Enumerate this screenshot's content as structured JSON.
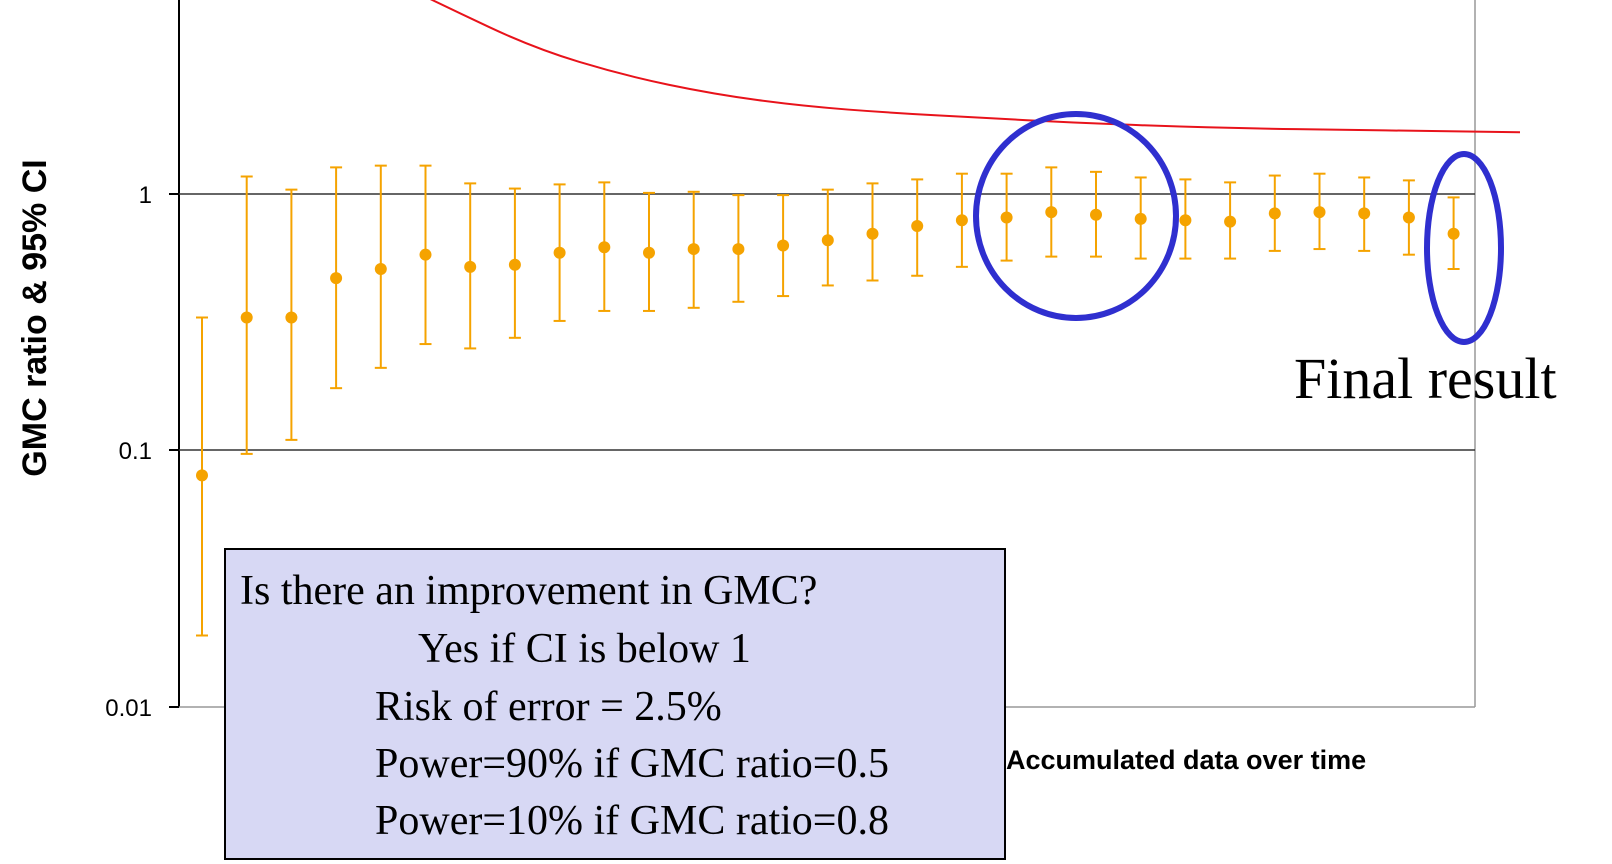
{
  "chart_data": {
    "type": "scatter",
    "title": "",
    "ylabel": "GMC ratio & 95% CI",
    "xlabel": "Accumulated data over time",
    "y_scale": "log",
    "ylim": [
      0.01,
      8
    ],
    "y_ticks": [
      {
        "value": 0.01,
        "label": "0.01"
      },
      {
        "value": 0.1,
        "label": "0.1"
      },
      {
        "value": 1,
        "label": "1"
      }
    ],
    "grid": "horizontal lines at 0.1 and 1",
    "points": [
      {
        "est": 0.08,
        "lo": 0.019,
        "hi": 0.33
      },
      {
        "est": 0.33,
        "lo": 0.097,
        "hi": 1.17
      },
      {
        "est": 0.33,
        "lo": 0.11,
        "hi": 1.04
      },
      {
        "est": 0.47,
        "lo": 0.175,
        "hi": 1.27
      },
      {
        "est": 0.51,
        "lo": 0.21,
        "hi": 1.29
      },
      {
        "est": 0.58,
        "lo": 0.26,
        "hi": 1.29
      },
      {
        "est": 0.52,
        "lo": 0.25,
        "hi": 1.1
      },
      {
        "est": 0.53,
        "lo": 0.275,
        "hi": 1.05
      },
      {
        "est": 0.59,
        "lo": 0.32,
        "hi": 1.09
      },
      {
        "est": 0.62,
        "lo": 0.35,
        "hi": 1.11
      },
      {
        "est": 0.59,
        "lo": 0.35,
        "hi": 1.01
      },
      {
        "est": 0.61,
        "lo": 0.36,
        "hi": 1.02
      },
      {
        "est": 0.61,
        "lo": 0.38,
        "hi": 0.99
      },
      {
        "est": 0.63,
        "lo": 0.4,
        "hi": 0.99
      },
      {
        "est": 0.66,
        "lo": 0.44,
        "hi": 1.04
      },
      {
        "est": 0.7,
        "lo": 0.46,
        "hi": 1.1
      },
      {
        "est": 0.75,
        "lo": 0.48,
        "hi": 1.14
      },
      {
        "est": 0.79,
        "lo": 0.52,
        "hi": 1.2
      },
      {
        "est": 0.81,
        "lo": 0.55,
        "hi": 1.2
      },
      {
        "est": 0.85,
        "lo": 0.57,
        "hi": 1.27
      },
      {
        "est": 0.83,
        "lo": 0.57,
        "hi": 1.22
      },
      {
        "est": 0.8,
        "lo": 0.56,
        "hi": 1.16
      },
      {
        "est": 0.79,
        "lo": 0.56,
        "hi": 1.14
      },
      {
        "est": 0.78,
        "lo": 0.56,
        "hi": 1.11
      },
      {
        "est": 0.84,
        "lo": 0.6,
        "hi": 1.18
      },
      {
        "est": 0.85,
        "lo": 0.61,
        "hi": 1.2
      },
      {
        "est": 0.84,
        "lo": 0.6,
        "hi": 1.16
      },
      {
        "est": 0.81,
        "lo": 0.58,
        "hi": 1.13
      },
      {
        "est": 0.7,
        "lo": 0.51,
        "hi": 0.97
      }
    ],
    "boundary_curve": [
      8.0,
      5.4,
      3.7,
      2.9,
      2.45,
      2.2,
      2.07,
      1.98,
      1.9,
      1.84,
      1.8,
      1.78,
      1.76,
      1.74
    ],
    "annotations": {
      "final_result": "Final result",
      "box_lines": [
        "Is there an improvement in GMC?",
        "Yes if CI is below 1",
        "Risk of error = 2.5%",
        "Power=90% if GMC ratio=0.5",
        "Power=10% if GMC ratio=0.8"
      ]
    },
    "colors": {
      "points": "#f5a300",
      "boundary": "#e8131b",
      "circles": "#2f2fcf",
      "box_fill": "#d7d8f4",
      "grid": "#333333"
    }
  }
}
